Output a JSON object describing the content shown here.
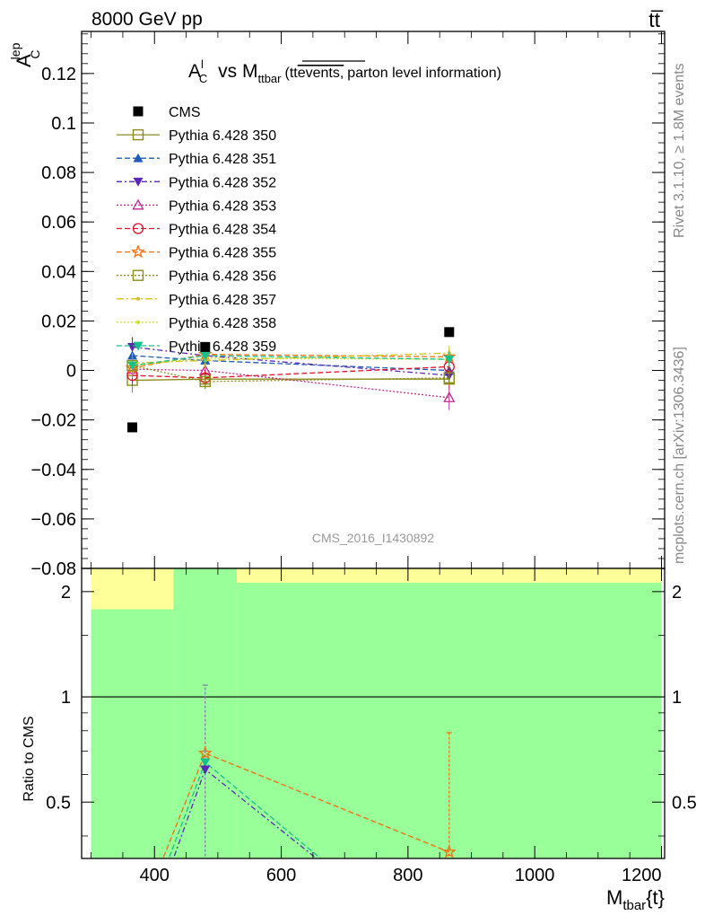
{
  "header": {
    "left": "8000 GeV pp",
    "right": "tt̅"
  },
  "side_text": {
    "rivet": "Rivet 3.1.10, ≥ 1.8M events",
    "mcplots": "mcplots.cern.ch [arXiv:1306.3436]"
  },
  "colors": {
    "cms": "#000000",
    "yellow_band": "#ffff99",
    "green_band": "#99ff99"
  },
  "chart_data": [
    {
      "type": "scatter",
      "panel": "main",
      "title_main": "A",
      "title_sup": "l",
      "title_sub": "C",
      "title_vs": "vs M",
      "title_vs_sub": "ttbar",
      "title_paren_open": "(tt",
      "title_overline": "events,",
      "title_paren_rest": "parton level information)",
      "ylabel_main": "A",
      "ylabel_sup": "lep",
      "ylabel_sub": "C",
      "watermark": "CMS_2016_I1430892",
      "xlim": [
        285,
        1205
      ],
      "ylim": [
        -0.08,
        0.137
      ],
      "xticks": [
        400,
        600,
        800,
        1000,
        1200
      ],
      "yticks": [
        -0.08,
        -0.06,
        -0.04,
        -0.02,
        0,
        0.02,
        0.04,
        0.06,
        0.08,
        0.1,
        0.12
      ],
      "ytick_labels": [
        "−0.08",
        "−0.06",
        "−0.04",
        "−0.02",
        "0",
        "0.02",
        "0.04",
        "0.06",
        "0.08",
        "0.1",
        "0.12"
      ],
      "x": [
        365,
        480,
        865
      ],
      "cms": {
        "name": "CMS",
        "values": [
          -0.023,
          0.0095,
          0.0155
        ]
      },
      "series": [
        {
          "name": "Pythia 6.428 350",
          "color": "#8c8c1a",
          "dash": "",
          "marker": "square-open",
          "values": [
            -0.004,
            -0.0035,
            -0.0035
          ],
          "err": [
            0.005,
            0.004,
            0.004
          ]
        },
        {
          "name": "Pythia 6.428 351",
          "color": "#1f5cb8",
          "dash": "6,3",
          "marker": "triangle-up",
          "values": [
            0.006,
            0.004,
            0.0
          ],
          "err": [
            0.004,
            0.003,
            0.003
          ]
        },
        {
          "name": "Pythia 6.428 352",
          "color": "#5a28b4",
          "dash": "6,3,2,3",
          "marker": "triangle-down",
          "values": [
            0.0095,
            0.006,
            -0.002
          ],
          "err": [
            0.004,
            0.003,
            0.003
          ]
        },
        {
          "name": "Pythia 6.428 353",
          "color": "#c02890",
          "dash": "2,2",
          "marker": "triangle-open",
          "values": [
            0.0005,
            0.0,
            -0.011
          ],
          "err": [
            0.004,
            0.003,
            0.005
          ]
        },
        {
          "name": "Pythia 6.428 354",
          "color": "#e0102a",
          "dash": "6,3",
          "marker": "circle-open",
          "values": [
            -0.002,
            -0.003,
            0.0015
          ],
          "err": [
            0.004,
            0.003,
            0.003
          ]
        },
        {
          "name": "Pythia 6.428 355",
          "color": "#f07010",
          "dash": "6,3",
          "marker": "star-open",
          "values": [
            0.001,
            0.0065,
            0.0055
          ],
          "err": [
            0.004,
            0.003,
            0.003
          ]
        },
        {
          "name": "Pythia 6.428 356",
          "color": "#8c8c1a",
          "dash": "2,2",
          "marker": "square-open",
          "values": [
            0.002,
            -0.0045,
            -0.003
          ],
          "err": [
            0.004,
            0.003,
            0.003
          ]
        },
        {
          "name": "Pythia 6.428 357",
          "color": "#d4c010",
          "dash": "8,3,2,3",
          "marker": "dot",
          "values": [
            0.003,
            0.004,
            0.007
          ],
          "err": [
            0.004,
            0.003,
            0.003
          ]
        },
        {
          "name": "Pythia 6.428 358",
          "color": "#c8e020",
          "dash": "2,2",
          "marker": "dot",
          "values": [
            0.002,
            0.005,
            0.0045
          ],
          "err": [
            0.004,
            0.003,
            0.003
          ]
        },
        {
          "name": "Pythia 6.428 359",
          "color": "#18c08c",
          "dash": "6,3",
          "marker": "triangle-down",
          "values": [
            0.002,
            0.006,
            0.0045
          ],
          "err": [
            0.004,
            0.003,
            0.003
          ]
        }
      ]
    },
    {
      "type": "line",
      "panel": "ratio",
      "ylabel": "Ratio to CMS",
      "xlabel_main": "M",
      "xlabel_sub": "tbar",
      "xlabel_suffix": "{t}",
      "xlim": [
        285,
        1205
      ],
      "ylim": [
        0.345,
        2.33
      ],
      "yscale": "log",
      "yticks": [
        0.5,
        1,
        2
      ],
      "ytick_labels": [
        "0.5",
        "1",
        "2"
      ],
      "xticks": [
        400,
        600,
        800,
        1000,
        1200
      ],
      "xtick_labels": [
        "400",
        "600",
        "800",
        "1000",
        "1200"
      ],
      "bands": [
        {
          "x0": 300,
          "x1": 430,
          "green_top": 1.78,
          "yellow_top": 2.33
        },
        {
          "x0": 430,
          "x1": 530,
          "green_top": 2.33,
          "yellow_top": 2.33
        },
        {
          "x0": 530,
          "x1": 1200,
          "green_top": 2.12,
          "yellow_top": 2.33
        }
      ],
      "series": [
        {
          "name": "Pythia 6.428 355",
          "color": "#f07010",
          "dash": "6,3",
          "marker": "star-open",
          "points": [
            [
              400,
              0.3
            ],
            [
              480,
              0.69
            ],
            [
              865,
              0.36
            ]
          ],
          "err_at": [
            480,
            0.355,
            1.08
          ]
        },
        {
          "name": "Pythia 6.428 359",
          "color": "#18c08c",
          "dash": "6,3",
          "marker": "triangle-down",
          "points": [
            [
              410,
              0.3
            ],
            [
              480,
              0.65
            ],
            [
              675,
              0.33
            ]
          ]
        },
        {
          "name": "Pythia 6.428 352",
          "color": "#5a28b4",
          "dash": "6,3,2,3",
          "marker": "triangle-down",
          "points": [
            [
              418,
              0.3
            ],
            [
              480,
              0.62
            ],
            [
              660,
              0.34
            ]
          ]
        }
      ],
      "errbars": [
        {
          "x": 480,
          "lo": 0.35,
          "hi": 1.08,
          "color": "#7a7aa0"
        },
        {
          "x": 865,
          "lo": 0.35,
          "hi": 0.79,
          "color": "#f07010"
        }
      ]
    }
  ]
}
